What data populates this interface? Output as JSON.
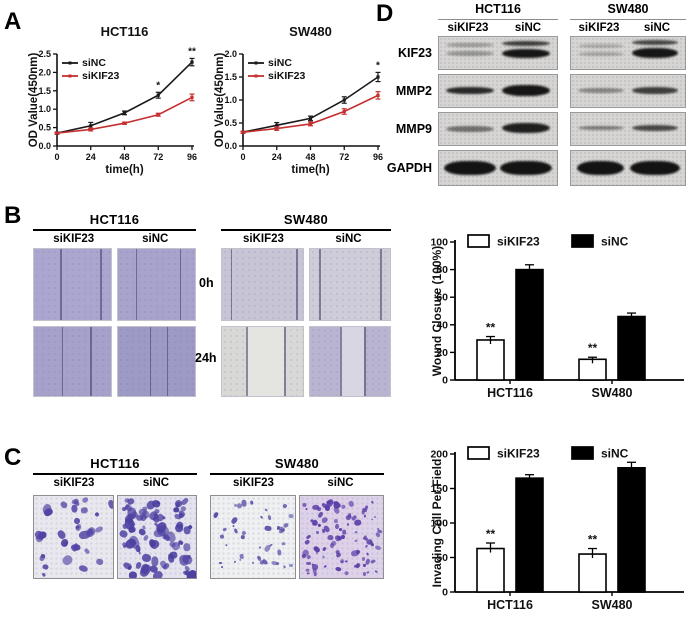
{
  "colors": {
    "siKIF23_line": "#c62f2f",
    "siNC_line": "#1a1a1a",
    "bar_white": "#ffffff",
    "bar_black": "#000000"
  },
  "panels": {
    "A": {
      "label": "A",
      "charts": [
        {
          "type": "line",
          "title": "HCT116",
          "xlabel": "time(h)",
          "ylabel": "OD Value(450nm)",
          "x": [
            0,
            24,
            48,
            72,
            96
          ],
          "ylim": [
            0,
            2.5
          ],
          "yticks": [
            "0.0",
            "0.5",
            "1.0",
            "1.5",
            "2.0",
            "2.5"
          ],
          "series": [
            {
              "name": "siNC",
              "color": "#1a1a1a",
              "values": [
                0.35,
                0.55,
                0.9,
                1.38,
                2.28
              ],
              "err": [
                0.03,
                0.09,
                0.05,
                0.08,
                0.1
              ],
              "sig": [
                "",
                "",
                "",
                "*",
                "**"
              ]
            },
            {
              "name": "siKIF23",
              "color": "#c62f2f",
              "values": [
                0.35,
                0.45,
                0.62,
                0.85,
                1.32
              ],
              "err": [
                0.02,
                0.04,
                0.03,
                0.04,
                0.09
              ],
              "sig": [
                "",
                "",
                "",
                "",
                ""
              ]
            }
          ]
        },
        {
          "type": "line",
          "title": "SW480",
          "xlabel": "time(h)",
          "ylabel": "OD Value(450nm)",
          "x": [
            0,
            24,
            48,
            72,
            96
          ],
          "ylim": [
            0,
            2.0
          ],
          "yticks": [
            "0.0",
            "0.5",
            "1.0",
            "1.5",
            "2.0"
          ],
          "series": [
            {
              "name": "siNC",
              "color": "#1a1a1a",
              "values": [
                0.3,
                0.45,
                0.6,
                1.0,
                1.5
              ],
              "err": [
                0.02,
                0.06,
                0.05,
                0.07,
                0.1
              ],
              "sig": [
                "",
                "",
                "",
                "",
                "*"
              ]
            },
            {
              "name": "siKIF23",
              "color": "#c62f2f",
              "values": [
                0.3,
                0.38,
                0.48,
                0.75,
                1.1
              ],
              "err": [
                0.02,
                0.04,
                0.04,
                0.06,
                0.08
              ],
              "sig": [
                "",
                "",
                "",
                "",
                ""
              ]
            }
          ]
        }
      ]
    },
    "B": {
      "label": "B",
      "row_labels": [
        "0h",
        "24h"
      ],
      "groups": [
        {
          "title": "HCT116",
          "cols": [
            "siKIF23",
            "siNC"
          ],
          "images": [
            {
              "bg": "#aba6d0",
              "lines": [
                0.34,
                0.86
              ]
            },
            {
              "bg": "#a8a3cd",
              "lines": [
                0.23,
                0.8
              ]
            },
            {
              "bg": "#a6a1cb",
              "lines": [
                0.36,
                0.73
              ]
            },
            {
              "bg": "#9e9ac6",
              "lines": [
                0.41,
                0.63
              ]
            }
          ]
        },
        {
          "title": "SW480",
          "cols": [
            "siKIF23",
            "siNC"
          ],
          "images": [
            {
              "bg": "#c7c4d6",
              "lines": [
                0.11,
                0.92
              ]
            },
            {
              "bg": "#cdccd8",
              "lines": [
                0.12,
                0.88
              ]
            },
            {
              "bg": "#d8d9d6",
              "lines": [
                0.3,
                0.77
              ],
              "strip": "#e4e5e1"
            },
            {
              "bg": "#b9b5d1",
              "lines": [
                0.38,
                0.68
              ],
              "strip": "#d9d6e3"
            }
          ]
        }
      ],
      "chart": {
        "type": "bar",
        "ylabel": "Wound Closure (100%)",
        "categories": [
          "HCT116",
          "SW480"
        ],
        "ylim": [
          0,
          100
        ],
        "yticks": [
          0,
          20,
          40,
          60,
          80,
          100
        ],
        "series": [
          {
            "name": "siKIF23",
            "fill": "#ffffff",
            "values": [
              29,
              15
            ],
            "err": [
              2.5,
              1.5
            ],
            "sig": [
              "**",
              "**"
            ]
          },
          {
            "name": "siNC",
            "fill": "#000000",
            "values": [
              80,
              46
            ],
            "err": [
              3.5,
              2.5
            ],
            "sig": [
              "",
              ""
            ]
          }
        ]
      }
    },
    "C": {
      "label": "C",
      "groups": [
        {
          "title": "HCT116",
          "cols": [
            "siKIF23",
            "siNC"
          ],
          "images": [
            {
              "bg": "#e9e8ee",
              "dot": "#5144a4",
              "count": 34,
              "min": 3,
              "max": 9,
              "seed": 11
            },
            {
              "bg": "#e5e3ee",
              "dot": "#4b3fa0",
              "count": 85,
              "min": 3,
              "max": 10,
              "seed": 22
            }
          ]
        },
        {
          "title": "SW480",
          "cols": [
            "siKIF23",
            "siNC"
          ],
          "images": [
            {
              "bg": "#eef0f1",
              "dot": "#5a50a8",
              "count": 42,
              "min": 2,
              "max": 5,
              "seed": 33
            },
            {
              "bg": "#ded2e9",
              "dot": "#5a3fa8",
              "count": 95,
              "min": 2,
              "max": 6,
              "seed": 44
            }
          ]
        }
      ],
      "chart": {
        "type": "bar",
        "ylabel": "Invading Cell Per Field",
        "categories": [
          "HCT116",
          "SW480"
        ],
        "ylim": [
          0,
          200
        ],
        "yticks": [
          0,
          50,
          100,
          150,
          200
        ],
        "series": [
          {
            "name": "siKIF23",
            "fill": "#ffffff",
            "values": [
              63,
              55
            ],
            "err": [
              8,
              8
            ],
            "sig": [
              "**",
              "**"
            ]
          },
          {
            "name": "siNC",
            "fill": "#000000",
            "values": [
              165,
              180
            ],
            "err": [
              5,
              8
            ],
            "sig": [
              "",
              ""
            ]
          }
        ]
      }
    },
    "D": {
      "label": "D",
      "cell_lines": [
        "HCT116",
        "SW480"
      ],
      "lane_labels": [
        "siKIF23",
        "siNC"
      ],
      "rows": [
        {
          "protein": "KIF23",
          "blots": [
            {
              "lanes": [
                [
                  {
                    "t": 6,
                    "h": 4,
                    "o": 0.3
                  },
                  {
                    "t": 14,
                    "h": 5,
                    "o": 0.32
                  }
                ],
                [
                  {
                    "t": 4,
                    "h": 5,
                    "o": 0.75
                  },
                  {
                    "t": 12,
                    "h": 9,
                    "o": 0.95
                  }
                ]
              ]
            },
            {
              "lanes": [
                [
                  {
                    "t": 7,
                    "h": 4,
                    "o": 0.22
                  },
                  {
                    "t": 15,
                    "h": 4,
                    "o": 0.25
                  }
                ],
                [
                  {
                    "t": 3,
                    "h": 5,
                    "o": 0.7
                  },
                  {
                    "t": 11,
                    "h": 10,
                    "o": 0.95
                  }
                ]
              ]
            }
          ]
        },
        {
          "protein": "MMP2",
          "blots": [
            {
              "lanes": [
                [
                  {
                    "t": 12,
                    "h": 7,
                    "o": 0.85
                  }
                ],
                [
                  {
                    "t": 10,
                    "h": 11,
                    "o": 0.95
                  }
                ]
              ]
            },
            {
              "lanes": [
                [
                  {
                    "t": 13,
                    "h": 5,
                    "o": 0.4
                  }
                ],
                [
                  {
                    "t": 12,
                    "h": 7,
                    "o": 0.75
                  }
                ]
              ]
            }
          ]
        },
        {
          "protein": "MMP9",
          "blots": [
            {
              "lanes": [
                [
                  {
                    "t": 13,
                    "h": 6,
                    "o": 0.5
                  }
                ],
                [
                  {
                    "t": 10,
                    "h": 10,
                    "o": 0.9
                  }
                ]
              ]
            },
            {
              "lanes": [
                [
                  {
                    "t": 13,
                    "h": 4,
                    "o": 0.45
                  }
                ],
                [
                  {
                    "t": 12,
                    "h": 6,
                    "o": 0.7
                  }
                ]
              ]
            }
          ]
        },
        {
          "protein": "GAPDH",
          "blots": [
            {
              "lanes": [
                [
                  {
                    "t": 10,
                    "h": 14,
                    "o": 0.96,
                    "w": 1.0
                  }
                ],
                [
                  {
                    "t": 10,
                    "h": 14,
                    "o": 0.96,
                    "w": 1.0
                  }
                ]
              ]
            },
            {
              "lanes": [
                [
                  {
                    "t": 10,
                    "h": 14,
                    "o": 0.96,
                    "w": 0.95
                  }
                ],
                [
                  {
                    "t": 10,
                    "h": 14,
                    "o": 0.96,
                    "w": 1.0
                  }
                ]
              ]
            }
          ]
        }
      ]
    }
  }
}
